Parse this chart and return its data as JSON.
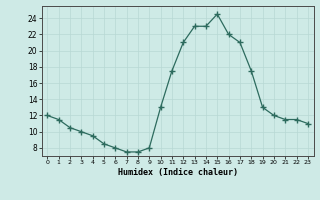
{
  "x": [
    0,
    1,
    2,
    3,
    4,
    5,
    6,
    7,
    8,
    9,
    10,
    11,
    12,
    13,
    14,
    15,
    16,
    17,
    18,
    19,
    20,
    21,
    22,
    23
  ],
  "y": [
    12,
    11.5,
    10.5,
    10,
    9.5,
    8.5,
    8,
    7.5,
    7.5,
    8,
    13,
    17.5,
    21,
    23,
    23,
    24.5,
    22,
    21,
    17.5,
    13,
    12,
    11.5,
    11.5,
    11
  ],
  "line_color": "#2d6b5e",
  "marker": "+",
  "bg_color": "#ceeae6",
  "grid_color": "#b8d8d4",
  "xlabel": "Humidex (Indice chaleur)",
  "xlim": [
    -0.5,
    23.5
  ],
  "ylim": [
    7,
    25.5
  ],
  "yticks": [
    8,
    10,
    12,
    14,
    16,
    18,
    20,
    22,
    24
  ],
  "xticks": [
    0,
    1,
    2,
    3,
    4,
    5,
    6,
    7,
    8,
    9,
    10,
    11,
    12,
    13,
    14,
    15,
    16,
    17,
    18,
    19,
    20,
    21,
    22,
    23
  ]
}
